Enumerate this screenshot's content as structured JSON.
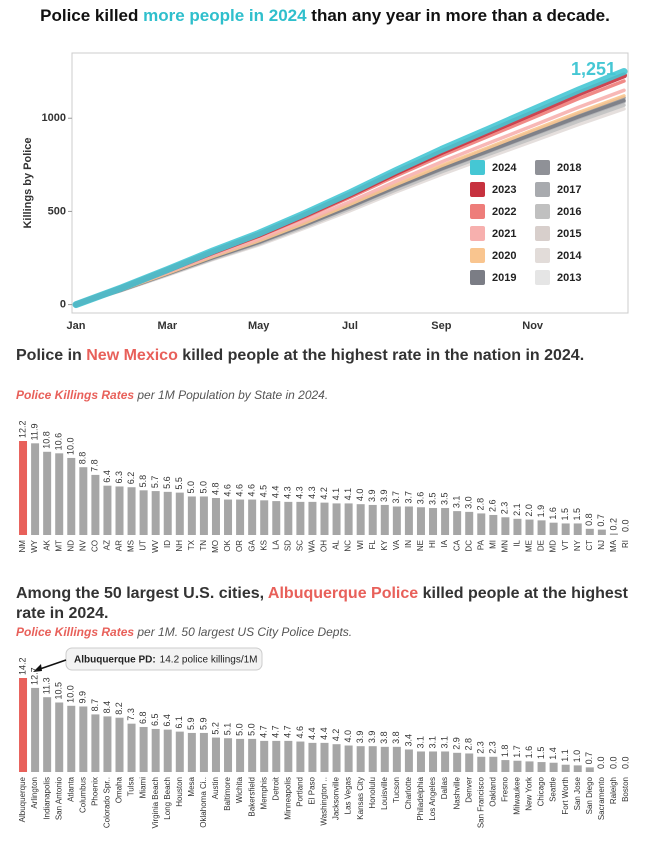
{
  "chart_data": [
    {
      "type": "line",
      "title": {
        "before": "Police killed ",
        "highlight": "more people in 2024",
        "after": " than any year in more than a decade."
      },
      "ylabel": "Killings by Police",
      "annotation": "1,251",
      "categories": [
        "Jan",
        null,
        "Mar",
        null,
        "May",
        null,
        "Jul",
        null,
        "Sep",
        null,
        "Nov",
        null,
        null
      ],
      "ylim": [
        -45,
        1350
      ],
      "yticks": [
        0,
        500,
        1000
      ],
      "series": [
        {
          "name": "2024",
          "color": "#45c7d4",
          "values": [
            0,
            90,
            188,
            288,
            382,
            488,
            600,
            719,
            832,
            938,
            1045,
            1151,
            1251
          ]
        },
        {
          "name": "2023",
          "color": "#c7323f",
          "values": [
            0,
            89,
            185,
            283,
            375,
            480,
            590,
            707,
            818,
            923,
            1027,
            1132,
            1230
          ]
        },
        {
          "name": "2022",
          "color": "#ee7d7a",
          "values": [
            0,
            86,
            180,
            276,
            366,
            468,
            576,
            690,
            798,
            900,
            1002,
            1104,
            1200
          ]
        },
        {
          "name": "2021",
          "color": "#f7b0ae",
          "values": [
            0,
            83,
            173,
            265,
            351,
            449,
            552,
            661,
            765,
            863,
            960,
            1058,
            1150
          ]
        },
        {
          "name": "2020",
          "color": "#f9c58f",
          "values": [
            0,
            81,
            168,
            258,
            342,
            437,
            538,
            644,
            745,
            840,
            935,
            1030,
            1120
          ]
        },
        {
          "name": "2019",
          "color": "#7b7d85",
          "values": [
            0,
            79,
            164,
            252,
            334,
            427,
            526,
            630,
            728,
            821,
            914,
            1007,
            1095
          ]
        },
        {
          "name": "2018",
          "color": "#8f9197",
          "values": [
            0,
            80,
            167,
            255,
            339,
            433,
            533,
            638,
            738,
            833,
            927,
            1021,
            1110
          ]
        },
        {
          "name": "2017",
          "color": "#a8aaae",
          "values": [
            0,
            78,
            164,
            251,
            332,
            425,
            523,
            627,
            725,
            818,
            910,
            1003,
            1090
          ]
        },
        {
          "name": "2016",
          "color": "#c0c0c0",
          "values": [
            0,
            77,
            161,
            246,
            326,
            417,
            514,
            615,
            712,
            803,
            893,
            984,
            1070
          ]
        },
        {
          "name": "2015",
          "color": "#d8cfcc",
          "values": [
            0,
            79,
            165,
            253,
            336,
            429,
            528,
            633,
            732,
            825,
            919,
            1012,
            1100
          ]
        },
        {
          "name": "2014",
          "color": "#e2dcd9",
          "values": [
            0,
            76,
            158,
            242,
            320,
            410,
            504,
            604,
            698,
            788,
            877,
            966,
            1050
          ]
        },
        {
          "name": "2013",
          "color": "#e5e5e5",
          "values": [
            0,
            78,
            162,
            248,
            329,
            421,
            518,
            621,
            718,
            810,
            902,
            994,
            1080
          ]
        }
      ]
    },
    {
      "type": "bar",
      "title": {
        "before": "Police in ",
        "highlight": "New Mexico",
        "after": " killed people at the highest rate in the nation in 2024."
      },
      "subtitle": {
        "highlight": "Police Killings Rates",
        "text": " per 1M Population by State in 2024."
      },
      "ylim": [
        0,
        12.2
      ],
      "categories": [
        "NM",
        "WY",
        "AK",
        "MT",
        "ND",
        "NV",
        "CO",
        "AZ",
        "AR",
        "MS",
        "UT",
        "WV",
        "ID",
        "NH",
        "TX",
        "TN",
        "MO",
        "OK",
        "OR",
        "GA",
        "KS",
        "LA",
        "SD",
        "SC",
        "WA",
        "OH",
        "AL",
        "NC",
        "WI",
        "FL",
        "KY",
        "VA",
        "IN",
        "NE",
        "HI",
        "IA",
        "CA",
        "DC",
        "PA",
        "MI",
        "MN",
        "IL",
        "ME",
        "DE",
        "MD",
        "VT",
        "NY",
        "CT",
        "NJ",
        "MA",
        "RI"
      ],
      "values": [
        12.2,
        11.9,
        10.8,
        10.6,
        10.0,
        8.8,
        7.8,
        6.4,
        6.3,
        6.2,
        5.8,
        5.7,
        5.6,
        5.5,
        5.0,
        5.0,
        4.8,
        4.6,
        4.6,
        4.6,
        4.5,
        4.4,
        4.3,
        4.3,
        4.3,
        4.2,
        4.1,
        4.1,
        4.0,
        3.9,
        3.9,
        3.7,
        3.7,
        3.6,
        3.5,
        3.5,
        3.1,
        3.0,
        2.8,
        2.6,
        2.3,
        2.1,
        2.0,
        1.9,
        1.6,
        1.5,
        1.5,
        0.8,
        0.7,
        0.2,
        0.0
      ],
      "value_labels": [
        "12.2",
        "11.9",
        "10.8",
        "10.6",
        "10.0",
        "8.8",
        "7.8",
        "6.4",
        "6.3",
        "6.2",
        "5.8",
        "5.7",
        "5.6",
        "5.5",
        "5.0",
        "5.0",
        "4.8",
        "4.6",
        "4.6",
        "4.6",
        "4.5",
        "4.4",
        "4.3",
        "4.3",
        "4.3",
        "4.2",
        "4.1",
        "4.1",
        "4.0",
        "3.9",
        "3.9",
        "3.7",
        "3.7",
        "3.6",
        "3.5",
        "3.5",
        "3.1",
        "3.0",
        "2.8",
        "2.6",
        "2.3",
        "2.1",
        "2.0",
        "1.9",
        "1.6",
        "1.5",
        "1.5",
        "0.8",
        "0.7",
        "0.2",
        "0.0"
      ],
      "colors": [
        "#e8605a",
        "#a6a6a6",
        "#a6a6a6",
        "#a6a6a6",
        "#a6a6a6",
        "#a6a6a6",
        "#a6a6a6",
        "#a6a6a6",
        "#a6a6a6",
        "#a6a6a6",
        "#a6a6a6",
        "#a6a6a6",
        "#a6a6a6",
        "#a6a6a6",
        "#a6a6a6",
        "#a6a6a6",
        "#a6a6a6",
        "#a6a6a6",
        "#a6a6a6",
        "#a6a6a6",
        "#a6a6a6",
        "#a6a6a6",
        "#a6a6a6",
        "#a6a6a6",
        "#a6a6a6",
        "#a6a6a6",
        "#a6a6a6",
        "#a6a6a6",
        "#a6a6a6",
        "#a6a6a6",
        "#a6a6a6",
        "#a6a6a6",
        "#a6a6a6",
        "#a6a6a6",
        "#a6a6a6",
        "#a6a6a6",
        "#a6a6a6",
        "#a6a6a6",
        "#a6a6a6",
        "#a6a6a6",
        "#a6a6a6",
        "#a6a6a6",
        "#a6a6a6",
        "#a6a6a6",
        "#a6a6a6",
        "#a6a6a6",
        "#a6a6a6",
        "#a6a6a6",
        "#a6a6a6",
        "#a6a6a6",
        "#a6a6a6"
      ]
    },
    {
      "type": "bar",
      "title": {
        "before": "Among the 50 largest U.S. cities, ",
        "highlight": "Albuquerque Police",
        "after": " killed people at the highest rate in 2024."
      },
      "subtitle": {
        "highlight": "Police Killings Rates",
        "text": " per 1M. 50 largest US City Police Depts."
      },
      "annotation": {
        "label": "Albuquerque PD:",
        "text": "14.2 police killings/1M"
      },
      "ylim": [
        0,
        14.2
      ],
      "categories": [
        "Albuquerque",
        "Arlington",
        "Indianapolis",
        "San Antonio",
        "Atlanta",
        "Columbus",
        "Phoenix",
        "Colorado Spr..",
        "Omaha",
        "Tulsa",
        "Miami",
        "Virginia Beach",
        "Long Beach",
        "Houston",
        "Mesa",
        "Oklahoma Ci..",
        "Austin",
        "Baltimore",
        "Wichita",
        "Bakersfield",
        "Memphis",
        "Detroit",
        "Minneapolis",
        "Portland",
        "El Paso",
        "Washington ..",
        "Jacksonville",
        "Las Vegas",
        "Kansas City",
        "Honolulu",
        "Louisville",
        "Tucson",
        "Charlotte",
        "Philadelphia",
        "Los Angeles",
        "Dallas",
        "Nashville",
        "Denver",
        "San Francisco",
        "Oakland",
        "Fresno",
        "Milwaukee",
        "New York",
        "Chicago",
        "Seattle",
        "Fort Worth",
        "San Jose",
        "San Diego",
        "Sacramento",
        "Raleigh",
        "Boston"
      ],
      "values": [
        14.2,
        12.7,
        11.3,
        10.5,
        10.0,
        9.9,
        8.7,
        8.4,
        8.2,
        7.3,
        6.8,
        6.5,
        6.4,
        6.1,
        5.9,
        5.9,
        5.2,
        5.1,
        5.0,
        5.0,
        4.7,
        4.7,
        4.7,
        4.6,
        4.4,
        4.4,
        4.2,
        4.0,
        3.9,
        3.9,
        3.8,
        3.8,
        3.4,
        3.1,
        3.1,
        3.1,
        2.9,
        2.8,
        2.3,
        2.3,
        1.8,
        1.7,
        1.6,
        1.5,
        1.4,
        1.1,
        1.0,
        0.7,
        0.0,
        0.0,
        0.0
      ],
      "value_labels": [
        "14.2",
        "12.7",
        "11.3",
        "10.5",
        "10.0",
        "9.9",
        "8.7",
        "8.4",
        "8.2",
        "7.3",
        "6.8",
        "6.5",
        "6.4",
        "6.1",
        "5.9",
        "5.9",
        "5.2",
        "5.1",
        "5.0",
        "5.0",
        "4.7",
        "4.7",
        "4.7",
        "4.6",
        "4.4",
        "4.4",
        "4.2",
        "4.0",
        "3.9",
        "3.9",
        "3.8",
        "3.8",
        "3.4",
        "3.1",
        "3.1",
        "3.1",
        "2.9",
        "2.8",
        "2.3",
        "2.3",
        "1.8",
        "1.7",
        "1.6",
        "1.5",
        "1.4",
        "1.1",
        "1.0",
        "0.7",
        "0.0",
        "0.0",
        "0.0"
      ],
      "colors": [
        "#e8605a",
        "#a6a6a6",
        "#a6a6a6",
        "#a6a6a6",
        "#a6a6a6",
        "#a6a6a6",
        "#a6a6a6",
        "#a6a6a6",
        "#a6a6a6",
        "#a6a6a6",
        "#a6a6a6",
        "#a6a6a6",
        "#a6a6a6",
        "#a6a6a6",
        "#a6a6a6",
        "#a6a6a6",
        "#a6a6a6",
        "#a6a6a6",
        "#a6a6a6",
        "#a6a6a6",
        "#a6a6a6",
        "#a6a6a6",
        "#a6a6a6",
        "#a6a6a6",
        "#a6a6a6",
        "#a6a6a6",
        "#a6a6a6",
        "#a6a6a6",
        "#a6a6a6",
        "#a6a6a6",
        "#a6a6a6",
        "#a6a6a6",
        "#a6a6a6",
        "#a6a6a6",
        "#a6a6a6",
        "#a6a6a6",
        "#a6a6a6",
        "#a6a6a6",
        "#a6a6a6",
        "#a6a6a6",
        "#a6a6a6",
        "#a6a6a6",
        "#a6a6a6",
        "#a6a6a6",
        "#a6a6a6",
        "#a6a6a6",
        "#a6a6a6",
        "#a6a6a6",
        "#a6a6a6",
        "#a6a6a6",
        "#a6a6a6"
      ]
    }
  ]
}
